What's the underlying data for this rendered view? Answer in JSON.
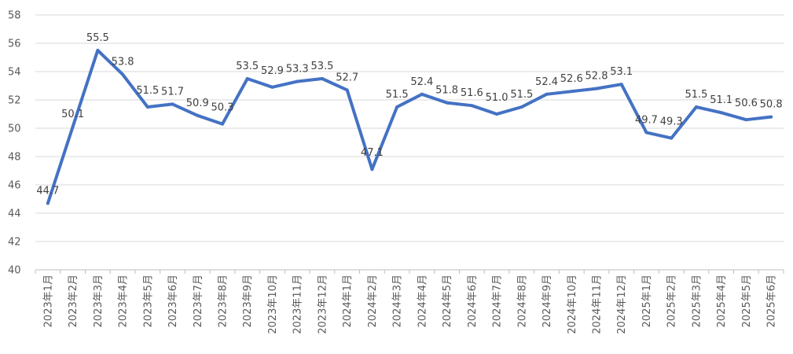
{
  "chart_data": {
    "type": "line",
    "title": "",
    "xlabel": "",
    "ylabel": "",
    "ylim": [
      40,
      58
    ],
    "yticks": [
      40,
      42,
      44,
      46,
      48,
      50,
      52,
      54,
      56,
      58
    ],
    "grid": true,
    "legend": "none",
    "categories": [
      "2023年1月",
      "2023年2月",
      "2023年3月",
      "2023年4月",
      "2023年5月",
      "2023年6月",
      "2023年7月",
      "2023年8月",
      "2023年9月",
      "2023年10月",
      "2023年11月",
      "2023年12月",
      "2024年1月",
      "2024年2月",
      "2024年3月",
      "2024年4月",
      "2024年5月",
      "2024年6月",
      "2024年7月",
      "2024年8月",
      "2024年9月",
      "2024年10月",
      "2024年11月",
      "2024年12月",
      "2025年1月",
      "2025年2月",
      "2025年3月",
      "2025年4月",
      "2025年5月",
      "2025年6月"
    ],
    "series": [
      {
        "color": "#4472c4",
        "values": [
          44.7,
          50.1,
          55.5,
          53.8,
          51.5,
          51.7,
          50.9,
          50.3,
          53.5,
          52.9,
          53.3,
          53.5,
          52.7,
          47.1,
          51.5,
          52.4,
          51.8,
          51.6,
          51.0,
          51.5,
          52.4,
          52.6,
          52.8,
          53.1,
          49.7,
          49.3,
          51.5,
          51.1,
          50.6,
          50.8
        ],
        "labels": [
          "44.7",
          "50.1",
          "55.5",
          "53.8",
          "51.5",
          "51.7",
          "50.9",
          "50.3",
          "53.5",
          "52.9",
          "53.3",
          "53.5",
          "52.7",
          "47.1",
          "51.5",
          "52.4",
          "51.8",
          "51.6",
          "51.0",
          "51.5",
          "52.4",
          "52.6",
          "52.8",
          "53.1",
          "49.7",
          "49.3",
          "51.5",
          "51.1",
          "50.6",
          "50.8"
        ]
      }
    ]
  }
}
